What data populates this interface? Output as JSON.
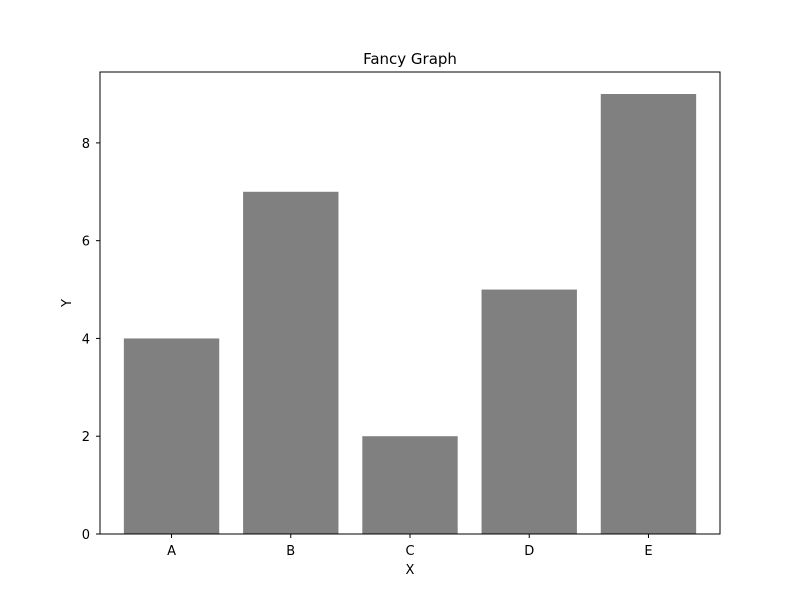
{
  "chart_data": {
    "type": "bar",
    "title": "Fancy Graph",
    "xlabel": "X",
    "ylabel": "Y",
    "categories": [
      "A",
      "B",
      "C",
      "D",
      "E"
    ],
    "values": [
      4,
      7,
      2,
      5,
      9
    ],
    "ylim": [
      0,
      9.45
    ],
    "yticks": [
      "0",
      "2",
      "4",
      "6",
      "8"
    ],
    "bar_color": "#808080",
    "grid": false,
    "legend": "none"
  }
}
